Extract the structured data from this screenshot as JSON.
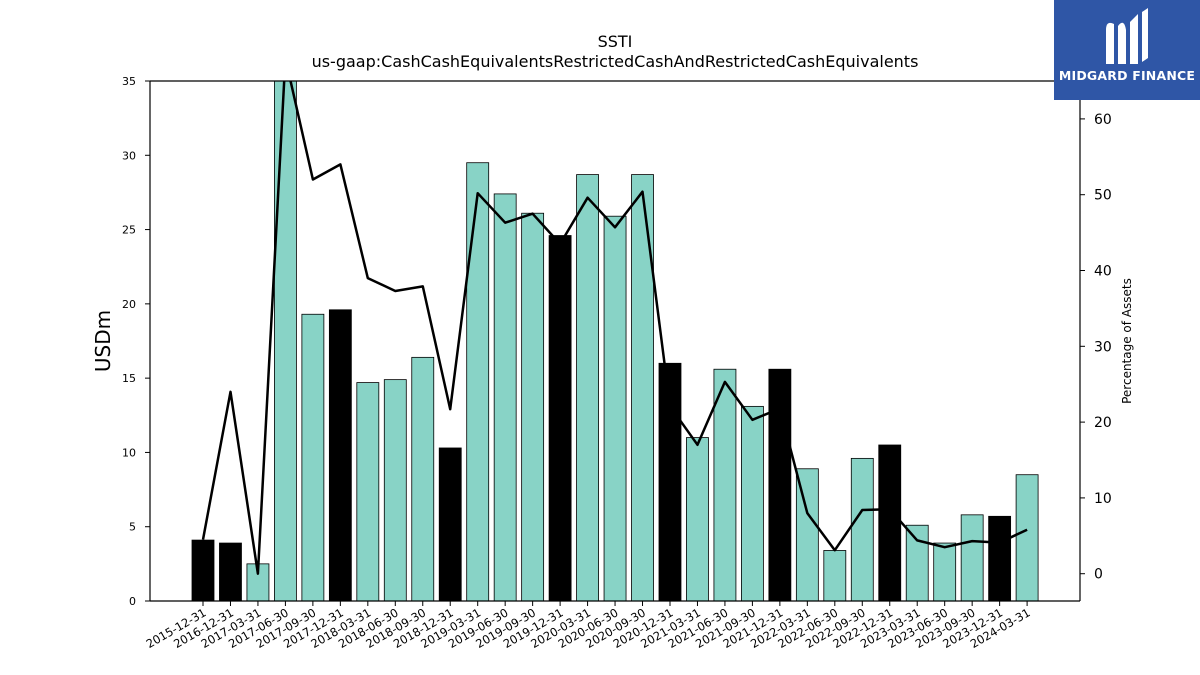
{
  "header": {
    "title": "SSTI",
    "subtitle": "us-gaap:CashCashEquivalentsRestrictedCashAndRestrictedCashEquivalents"
  },
  "logo": {
    "text": "MIDGARD FINANCE",
    "background": "#2f56a6"
  },
  "chart_data": {
    "type": "bar",
    "title": "SSTI",
    "subtitle": "us-gaap:CashCashEquivalentsRestrictedCashAndRestrictedCashEquivalents",
    "ylabel": "USDm",
    "y2label": "Percentage of Assets",
    "ylim": [
      0,
      35
    ],
    "y2lim": [
      -3.6,
      65
    ],
    "yticks": [
      0,
      5,
      10,
      15,
      20,
      25,
      30,
      35
    ],
    "y2ticks": [
      0,
      10,
      20,
      30,
      40,
      50,
      60
    ],
    "colors": {
      "quarter": "#88d3c6",
      "year_end": "#000000",
      "line": "#000000"
    },
    "categories": [
      "2015-12-31",
      "2016-12-31",
      "2017-03-31",
      "2017-06-30",
      "2017-09-30",
      "2017-12-31",
      "2018-03-31",
      "2018-06-30",
      "2018-09-30",
      "2018-12-31",
      "2019-03-31",
      "2019-06-30",
      "2019-09-30",
      "2019-12-31",
      "2020-03-31",
      "2020-06-30",
      "2020-09-30",
      "2020-12-31",
      "2021-03-31",
      "2021-06-30",
      "2021-09-30",
      "2021-12-31",
      "2022-03-31",
      "2022-06-30",
      "2022-09-30",
      "2022-12-31",
      "2023-03-31",
      "2023-06-30",
      "2023-09-30",
      "2023-12-31",
      "2024-03-31"
    ],
    "series": [
      {
        "kind": "bar",
        "values": [
          4.1,
          3.9,
          2.5,
          35.0,
          19.3,
          19.6,
          14.7,
          14.9,
          16.4,
          10.3,
          29.5,
          27.4,
          26.1,
          24.6,
          28.7,
          25.9,
          28.7,
          16.0,
          11.0,
          15.6,
          13.1,
          15.6,
          8.9,
          3.4,
          9.6,
          10.5,
          5.1,
          3.9,
          5.8,
          5.7,
          8.5
        ]
      },
      {
        "kind": "line",
        "axis": "right",
        "values": [
          4.5,
          24.0,
          0.0,
          68.0,
          52.0,
          54.0,
          39.0,
          37.3,
          37.9,
          21.7,
          50.2,
          46.3,
          47.5,
          43.5,
          49.6,
          45.7,
          50.4,
          22.1,
          17.0,
          25.3,
          20.3,
          21.8,
          8.0,
          3.1,
          8.4,
          8.5,
          4.4,
          3.5,
          4.3,
          4.1,
          5.8
        ]
      }
    ],
    "year_end_flags": [
      true,
      true,
      false,
      false,
      false,
      true,
      false,
      false,
      false,
      true,
      false,
      false,
      false,
      true,
      false,
      false,
      false,
      true,
      false,
      false,
      false,
      true,
      false,
      false,
      false,
      true,
      false,
      false,
      false,
      true,
      false
    ]
  }
}
